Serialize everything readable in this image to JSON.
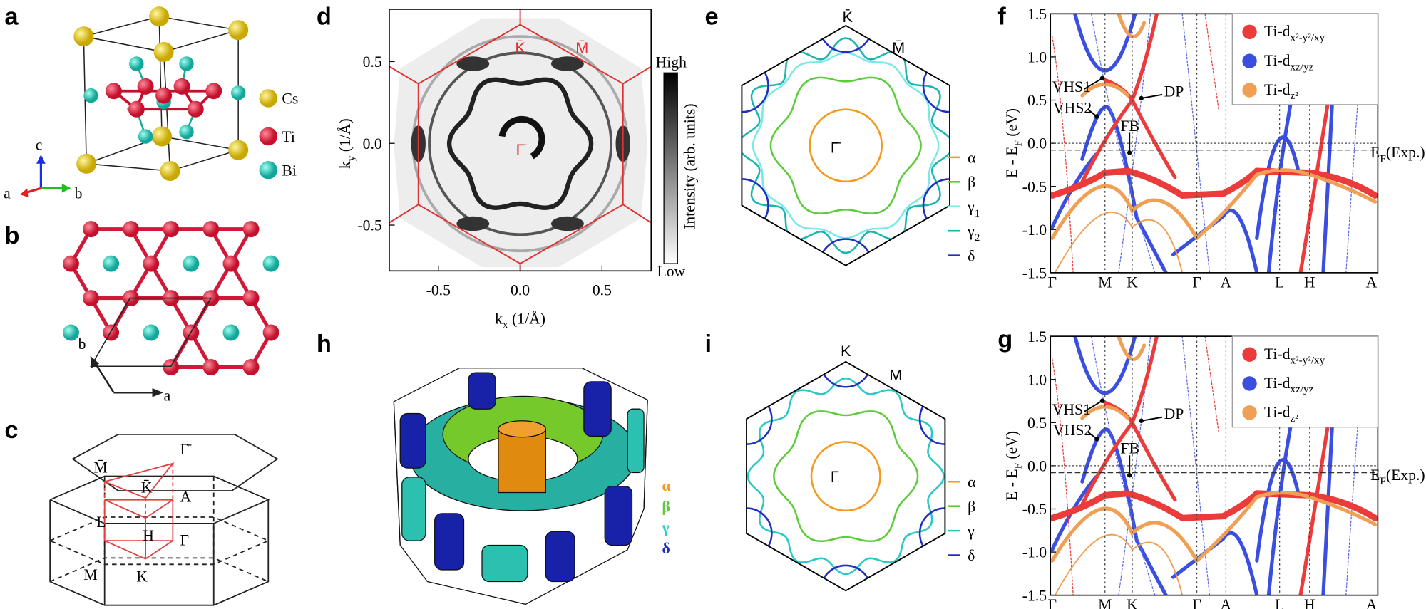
{
  "panels": {
    "a": {
      "label": "a",
      "species": [
        "Cs",
        "Ti",
        "Bi"
      ],
      "axes": [
        "c",
        "a",
        "b"
      ]
    },
    "b": {
      "label": "b",
      "axes": [
        "b",
        "a"
      ]
    },
    "c": {
      "label": "c",
      "points": [
        "Γ̄",
        "M̄",
        "K̄",
        "A",
        "L",
        "H",
        "Γ",
        "M",
        "K"
      ]
    },
    "d": {
      "label": "d",
      "xlabel": {
        "text": "k",
        "sub": "x",
        "tail": " (1/Å)"
      },
      "ylabel": {
        "text": "k",
        "sub": "y",
        "tail": " (1/Å)"
      },
      "xlim": [
        -0.8,
        0.8
      ],
      "ylim": [
        -0.78,
        0.82
      ],
      "xticks": [
        -0.5,
        {
          "value": 0,
          "label": "0.0"
        },
        0.5
      ],
      "yticks": [
        0.5,
        {
          "value": 0,
          "label": "0.0"
        },
        -0.5
      ],
      "points": [
        "K̄",
        "M̄",
        "Γ̄"
      ],
      "colorbar": {
        "high": "High",
        "low": "Low",
        "label": "Intensity (arb. units)"
      }
    },
    "e": {
      "label": "e",
      "points": [
        "K̄",
        "M̄",
        "Γ̄"
      ],
      "legend": [
        {
          "name": "α",
          "color": "#f39a1e"
        },
        {
          "name": "β",
          "color": "#5ccc3a"
        },
        {
          "name": {
            "text": "γ",
            "sub": "1"
          },
          "color": "#7ae8e8"
        },
        {
          "name": {
            "text": "γ",
            "sub": "2"
          },
          "color": "#1ab5b0"
        },
        {
          "name": "δ",
          "color": "#1f2fc0"
        }
      ]
    },
    "f": {
      "label": "f",
      "ylabel": {
        "text": "E - E",
        "sub": "F",
        "tail": " (eV)"
      },
      "ylim": [
        -1.5,
        1.5
      ],
      "yticks": [
        1.5,
        {
          "value": 1,
          "label": "1.0"
        },
        0.5,
        {
          "value": 0,
          "label": "0.0"
        },
        -0.5,
        {
          "value": -1,
          "label": "-1.0"
        },
        -1.5
      ],
      "kpath": [
        "Γ",
        "M",
        "K",
        "Γ",
        "A",
        "L",
        "H",
        "A"
      ],
      "legend": [
        {
          "name": {
            "text": "Ti-d",
            "sub": "x²-y²/xy"
          },
          "color": "#ec3b3b"
        },
        {
          "name": {
            "text": "Ti-d",
            "sub": "xz/yz"
          },
          "color": "#3a4fe0"
        },
        {
          "name": {
            "text": "Ti-d",
            "sub": "z²"
          },
          "color": "#f0a055"
        }
      ],
      "annotations": [
        "VHS1",
        "VHS2",
        "DP",
        "FB"
      ],
      "ef_exp": {
        "label": {
          "text": "E",
          "sub": "F",
          "tail": "(Exp.)"
        },
        "energy": -0.08
      }
    },
    "g": {
      "label": "g",
      "ylabel": {
        "text": "E - E",
        "sub": "F",
        "tail": " (eV)"
      },
      "ylim": [
        -1.5,
        1.5
      ],
      "yticks": [
        1.5,
        {
          "value": 1,
          "label": "1.0"
        },
        0.5,
        {
          "value": 0,
          "label": "0.0"
        },
        -0.5,
        {
          "value": -1,
          "label": "-1.0"
        },
        -1.5
      ],
      "kpath": [
        "Γ",
        "M",
        "K",
        "Γ",
        "A",
        "L",
        "H",
        "A"
      ],
      "legend": [
        {
          "name": {
            "text": "Ti-d",
            "sub": "x²-y²/xy"
          },
          "color": "#ec3b3b"
        },
        {
          "name": {
            "text": "Ti-d",
            "sub": "xz/yz"
          },
          "color": "#3a4fe0"
        },
        {
          "name": {
            "text": "Ti-d",
            "sub": "z²"
          },
          "color": "#f0a055"
        }
      ],
      "annotations": [
        "VHS1",
        "VHS2",
        "DP",
        "FB"
      ],
      "ef_exp": {
        "label": {
          "text": "E",
          "sub": "F",
          "tail": "(Exp.)"
        },
        "energy": -0.08
      }
    },
    "h": {
      "label": "h",
      "legend": [
        {
          "name": "α",
          "color": "#f39a1e"
        },
        {
          "name": "β",
          "color": "#5ccc3a"
        },
        {
          "name": "γ",
          "color": "#1fd0d0"
        },
        {
          "name": "δ",
          "color": "#1f2fc0"
        }
      ]
    },
    "i": {
      "label": "i",
      "points": [
        "K",
        "M",
        "Γ"
      ],
      "legend": [
        {
          "name": "α",
          "color": "#f39a1e"
        },
        {
          "name": "β",
          "color": "#5ccc3a"
        },
        {
          "name": "γ",
          "color": "#2cc8c8"
        },
        {
          "name": "δ",
          "color": "#1f2fc0"
        }
      ]
    }
  }
}
